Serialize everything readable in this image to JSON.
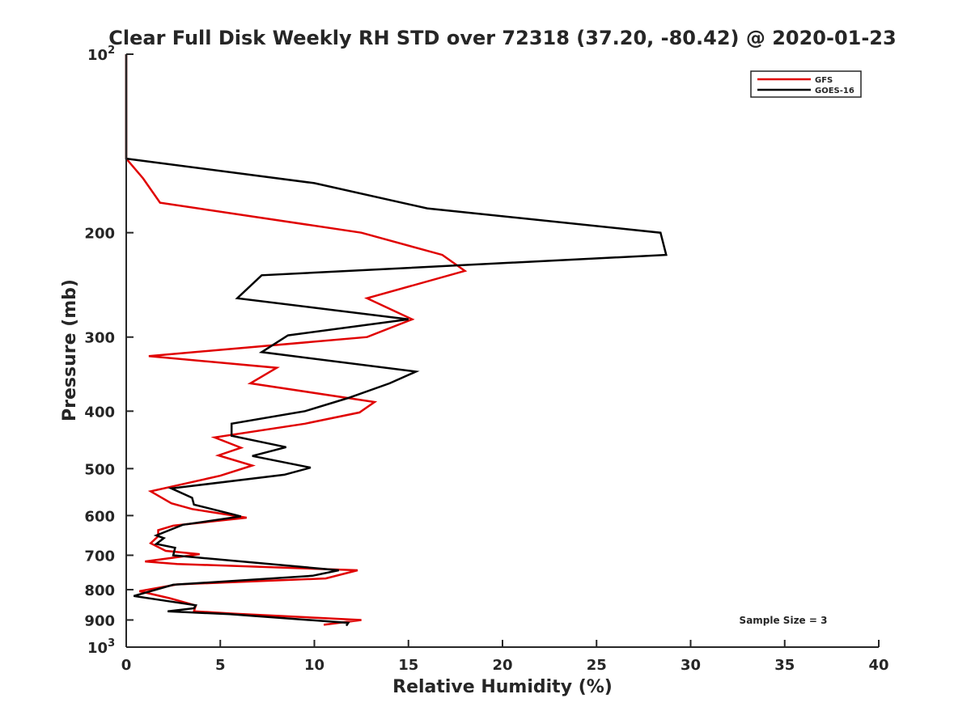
{
  "chart_data": {
    "type": "line",
    "title": "Clear Full Disk Weekly RH STD over 72318 (37.20, -80.42) @ 2020-01-23",
    "xlabel": "Relative Humidity (%)",
    "ylabel": "Pressure (mb)",
    "xlim": [
      0,
      40
    ],
    "ylim": [
      100,
      1000
    ],
    "y_scale": "log",
    "y_reversed": true,
    "x_ticks": [
      "0",
      "5",
      "10",
      "15",
      "20",
      "25",
      "30",
      "35",
      "40"
    ],
    "y_ticks": [
      {
        "value": 100,
        "base": "10",
        "exp": "2"
      },
      {
        "value": 200,
        "label": "200"
      },
      {
        "value": 300,
        "label": "300"
      },
      {
        "value": 400,
        "label": "400"
      },
      {
        "value": 500,
        "label": "500"
      },
      {
        "value": 600,
        "label": "600"
      },
      {
        "value": 700,
        "label": "700"
      },
      {
        "value": 800,
        "label": "800"
      },
      {
        "value": 900,
        "label": "900"
      },
      {
        "value": 1000,
        "base": "10",
        "exp": "3"
      }
    ],
    "legend": {
      "position": "top-right"
    },
    "annotation": "Sample Size = 3",
    "series": [
      {
        "name": "GFS",
        "color": "#e00000",
        "points": [
          [
            0,
            100
          ],
          [
            0,
            150
          ],
          [
            0.9,
            162
          ],
          [
            1.8,
            178
          ],
          [
            12.5,
            200
          ],
          [
            16.8,
            218
          ],
          [
            18.0,
            232
          ],
          [
            12.8,
            258
          ],
          [
            15.2,
            280
          ],
          [
            12.8,
            300
          ],
          [
            1.2,
            323
          ],
          [
            8.0,
            338
          ],
          [
            6.6,
            359
          ],
          [
            13.2,
            386
          ],
          [
            12.4,
            402
          ],
          [
            9.5,
            420
          ],
          [
            4.7,
            443
          ],
          [
            6.1,
            461
          ],
          [
            4.9,
            475
          ],
          [
            6.7,
            494
          ],
          [
            5.0,
            514
          ],
          [
            1.3,
            546
          ],
          [
            2.4,
            572
          ],
          [
            3.5,
            585
          ],
          [
            6.4,
            605
          ],
          [
            2.5,
            624
          ],
          [
            1.7,
            635
          ],
          [
            1.7,
            650
          ],
          [
            1.3,
            668
          ],
          [
            2.1,
            688
          ],
          [
            3.9,
            697
          ],
          [
            1.0,
            717
          ],
          [
            2.7,
            724
          ],
          [
            12.3,
            742
          ],
          [
            10.6,
            766
          ],
          [
            2.7,
            784
          ],
          [
            0.7,
            805
          ],
          [
            2.3,
            827
          ],
          [
            3.7,
            851
          ],
          [
            3.6,
            870
          ],
          [
            5.7,
            878
          ],
          [
            12.5,
            900
          ],
          [
            10.5,
            917
          ]
        ]
      },
      {
        "name": "GOES-16",
        "color": "#000000",
        "points": [
          [
            0,
            100
          ],
          [
            0,
            150
          ],
          [
            10.0,
            165
          ],
          [
            16.0,
            182
          ],
          [
            28.4,
            200
          ],
          [
            28.7,
            218
          ],
          [
            7.2,
            236
          ],
          [
            5.9,
            258
          ],
          [
            15.0,
            280
          ],
          [
            8.6,
            298
          ],
          [
            7.2,
            318
          ],
          [
            15.4,
            343
          ],
          [
            14.0,
            359
          ],
          [
            11.8,
            380
          ],
          [
            9.5,
            400
          ],
          [
            5.6,
            420
          ],
          [
            5.6,
            440
          ],
          [
            8.5,
            460
          ],
          [
            6.7,
            476
          ],
          [
            9.8,
            498
          ],
          [
            8.4,
            512
          ],
          [
            2.4,
            540
          ],
          [
            3.5,
            560
          ],
          [
            3.6,
            575
          ],
          [
            6.1,
            602
          ],
          [
            3.0,
            622
          ],
          [
            1.6,
            648
          ],
          [
            2.0,
            655
          ],
          [
            1.6,
            670
          ],
          [
            2.6,
            680
          ],
          [
            2.5,
            700
          ],
          [
            11.3,
            742
          ],
          [
            9.9,
            758
          ],
          [
            2.5,
            785
          ],
          [
            0.4,
            820
          ],
          [
            3.7,
            850
          ],
          [
            3.6,
            860
          ],
          [
            2.2,
            870
          ],
          [
            5.5,
            880
          ],
          [
            11.8,
            910
          ],
          [
            11.7,
            920
          ]
        ]
      }
    ]
  }
}
